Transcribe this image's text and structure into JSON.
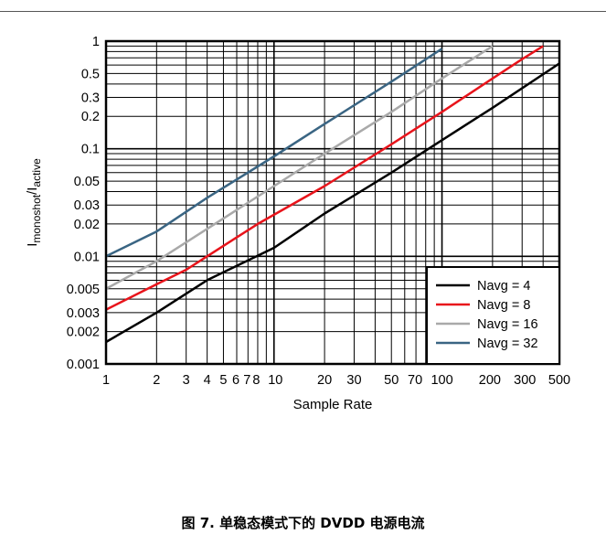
{
  "caption": "图 7. 单稳态模式下的 DVDD 电源电流",
  "colors": {
    "black": "#000000",
    "red": "#e8141b",
    "gray": "#a9a9a9",
    "blue": "#3a6583"
  },
  "chart_data": {
    "type": "line",
    "xscale": "log",
    "yscale": "log",
    "xlabel": "Sample Rate",
    "ylabel_main": "I",
    "ylabel_sub1": "monoshot",
    "ylabel_slash": "/I",
    "ylabel_sub2": "active",
    "xlim": [
      1,
      500
    ],
    "ylim": [
      0.001,
      1
    ],
    "grid": true,
    "legend_position": "bottom-right",
    "xtick_values": [
      1,
      2,
      3,
      4,
      5,
      6,
      7,
      8,
      10,
      20,
      30,
      50,
      70,
      100,
      200,
      300,
      500
    ],
    "xtick_labels": [
      "1",
      "2",
      "3",
      "4",
      "5",
      "6",
      "7",
      "8",
      "10",
      "20",
      "30",
      "50",
      "70",
      "100",
      "200",
      "300",
      "500"
    ],
    "ytick_values": [
      0.001,
      0.002,
      0.003,
      0.005,
      0.01,
      0.02,
      0.03,
      0.05,
      0.1,
      0.2,
      0.3,
      0.5,
      1
    ],
    "ytick_labels": [
      "0.001",
      "0.002",
      "0.003",
      "0.005",
      "0.01",
      "0.02",
      "0.03",
      "0.05",
      "0.1",
      "0.2",
      "0.3",
      "0.5",
      "1"
    ],
    "series": [
      {
        "name": "Navg = 4",
        "color": "#000000",
        "x": [
          1,
          2,
          4,
          10,
          20,
          50,
          100,
          200,
          500
        ],
        "y": [
          0.0016,
          0.003,
          0.006,
          0.012,
          0.025,
          0.06,
          0.12,
          0.24,
          0.62
        ]
      },
      {
        "name": "Navg = 8",
        "color": "#e8141b",
        "x": [
          1,
          2,
          3,
          4,
          8,
          20,
          50,
          100,
          200,
          300,
          400
        ],
        "y": [
          0.0032,
          0.0055,
          0.0075,
          0.01,
          0.02,
          0.045,
          0.11,
          0.22,
          0.45,
          0.68,
          0.9
        ]
      },
      {
        "name": "Navg = 16",
        "color": "#a9a9a9",
        "x": [
          1,
          2,
          4,
          10,
          20,
          50,
          100,
          200
        ],
        "y": [
          0.005,
          0.009,
          0.018,
          0.045,
          0.09,
          0.22,
          0.45,
          0.9
        ]
      },
      {
        "name": "Navg = 32",
        "color": "#3a6583",
        "x": [
          1,
          2,
          4,
          10,
          20,
          50,
          100
        ],
        "y": [
          0.01,
          0.017,
          0.035,
          0.085,
          0.17,
          0.42,
          0.85
        ]
      }
    ]
  }
}
